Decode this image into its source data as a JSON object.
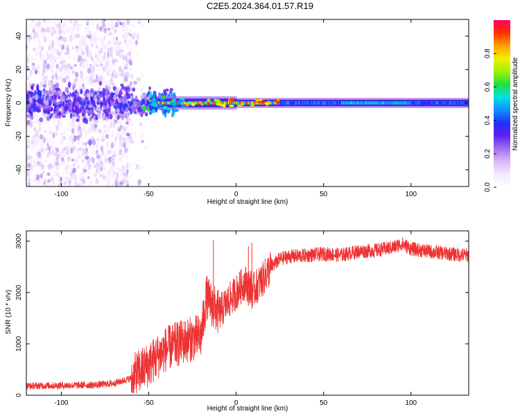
{
  "title": "C2E5.2024.364.01.57.R19",
  "colors": {
    "snr_line": "#ee3333",
    "colormap": [
      "#ffffff",
      "#f4e8ff",
      "#d9b8f5",
      "#a070f0",
      "#6020f0",
      "#2030ff",
      "#1090ff",
      "#00e0e0",
      "#20e040",
      "#a0f000",
      "#f0f000",
      "#ffa000",
      "#ff3000",
      "#ff0060"
    ]
  },
  "chart_data": [
    {
      "type": "heatmap",
      "title": "C2E5.2024.364.01.57.R19",
      "xlabel": "Height of straight line (km)",
      "ylabel": "Frequency (Hz)",
      "xlim": [
        -120,
        133
      ],
      "ylim": [
        -50,
        50
      ],
      "xticks": [
        -100,
        -50,
        0,
        50,
        100
      ],
      "yticks": [
        -40,
        -20,
        0,
        20,
        40
      ],
      "colorbar": {
        "label": "Normalized spectral amplitude",
        "range": [
          0.0,
          1.0
        ],
        "ticks": [
          0.0,
          0.2,
          0.4,
          0.6,
          0.8
        ]
      },
      "description_regions": [
        {
          "x_range": [
            -120,
            -60
          ],
          "freq_spread_hz": [
            -50,
            50
          ],
          "amplitude": 0.1
        },
        {
          "x_range": [
            -60,
            -35
          ],
          "freq_spread_hz": [
            -12,
            12
          ],
          "amplitude": 0.35
        },
        {
          "x_range": [
            -35,
            20
          ],
          "freq_spread_hz": [
            -4,
            4
          ],
          "amplitude": 0.7
        },
        {
          "x_range": [
            20,
            133
          ],
          "freq_spread_hz": [
            -3,
            3
          ],
          "amplitude": 0.45
        }
      ]
    },
    {
      "type": "line",
      "xlabel": "Height of straight line (km)",
      "ylabel": "SNR (10 * v/v)",
      "xlim": [
        -120,
        133
      ],
      "ylim": [
        0,
        3200
      ],
      "xticks": [
        -100,
        -50,
        0,
        50,
        100
      ],
      "yticks": [
        0,
        1000,
        2000,
        3000
      ],
      "trend": {
        "x": [
          -120,
          -100,
          -80,
          -70,
          -60,
          -50,
          -40,
          -30,
          -20,
          -17,
          -10,
          0,
          5,
          10,
          15,
          20,
          25,
          30,
          40,
          50,
          60,
          70,
          80,
          90,
          95,
          100,
          110,
          120,
          133
        ],
        "y": [
          180,
          190,
          200,
          230,
          330,
          600,
          900,
          1050,
          1150,
          1900,
          1600,
          2000,
          2200,
          2050,
          2250,
          2500,
          2650,
          2700,
          2720,
          2750,
          2730,
          2800,
          2820,
          2880,
          2950,
          2850,
          2800,
          2760,
          2720
        ]
      },
      "spikes": [
        {
          "x": -13,
          "y": 3020
        },
        {
          "x": 9,
          "y": 2970
        },
        {
          "x": 7,
          "y": 2900
        }
      ]
    }
  ]
}
